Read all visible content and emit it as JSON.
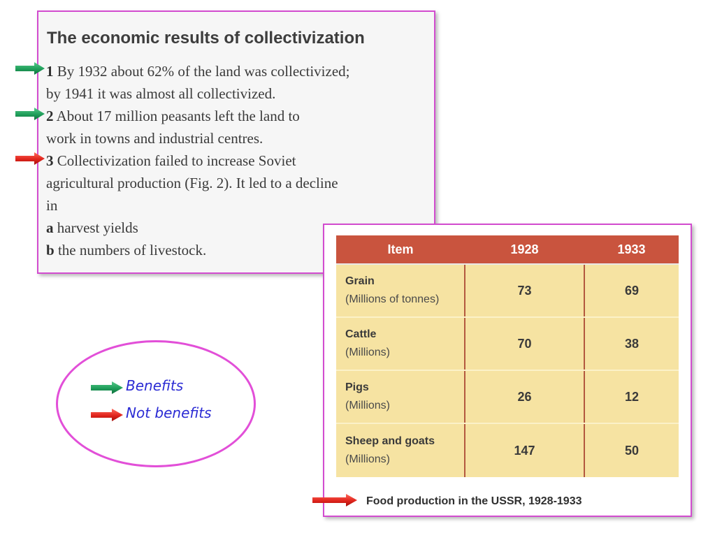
{
  "panel": {
    "heading": "The economic results of collectivization",
    "lines": [
      {
        "num": "1",
        "text": " By 1932 about 62% of the land was collectivized;"
      },
      {
        "num": "",
        "text": "by 1941 it was almost all collectivized."
      },
      {
        "num": "2",
        "text": " About 17 million peasants left the land to"
      },
      {
        "num": "",
        "text": "work in towns and industrial centres."
      },
      {
        "num": "3",
        "text": " Collectivization failed to increase Soviet"
      },
      {
        "num": "",
        "text": "agricultural production (Fig. 2). It led to a decline"
      },
      {
        "num": "",
        "text": "in"
      },
      {
        "num": "a",
        "text": " harvest yields"
      },
      {
        "num": "b",
        "text": " the numbers of livestock."
      }
    ]
  },
  "table": {
    "headers": [
      "Item",
      "1928",
      "1933"
    ],
    "rows": [
      {
        "name": "Grain",
        "unit": "(Millions of tonnes)",
        "v1928": "73",
        "v1933": "69"
      },
      {
        "name": "Cattle",
        "unit": "(Millions)",
        "v1928": "70",
        "v1933": "38"
      },
      {
        "name": "Pigs",
        "unit": "(Millions)",
        "v1928": "26",
        "v1933": "12"
      },
      {
        "name": "Sheep and goats",
        "unit": "(Millions)",
        "v1928": "147",
        "v1933": "50"
      }
    ],
    "caption": "Food production in the USSR, 1928-1933"
  },
  "legend": {
    "benefits": "Benefits",
    "not_benefits": "Not benefits"
  },
  "colors": {
    "border": "#d24ccf",
    "green_arrow": "#1f9e5a",
    "red_arrow": "#e0241c",
    "table_header": "#c9543e",
    "table_cell": "#f6e3a2",
    "legend_text": "#2b2bd4"
  },
  "icons": {
    "benefit_arrow": "green-arrow-icon",
    "not_benefit_arrow": "red-arrow-icon"
  }
}
